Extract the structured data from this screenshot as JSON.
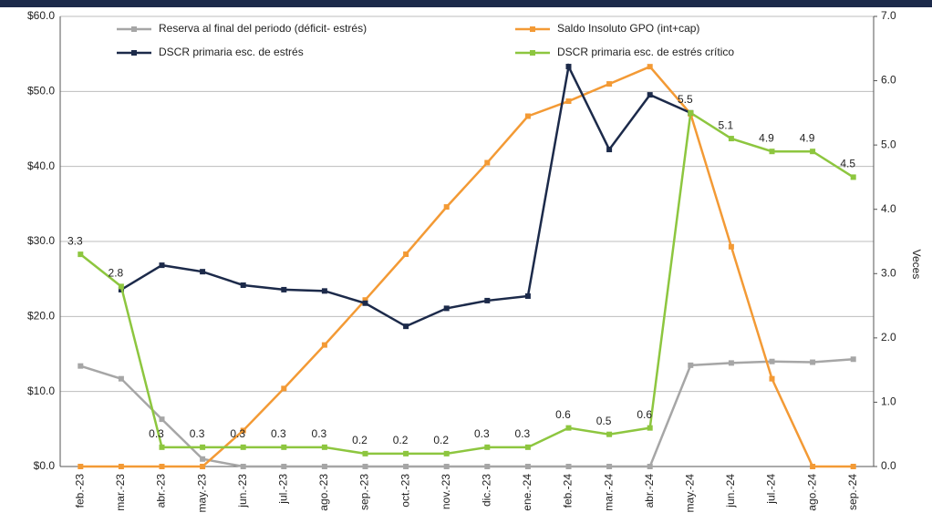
{
  "chart_data": {
    "type": "line",
    "y2label": "Veces",
    "categories": [
      "feb.-23",
      "mar.-23",
      "abr.-23",
      "may.-23",
      "jun.-23",
      "jul.-23",
      "ago.-23",
      "sep.-23",
      "oct.-23",
      "nov.-23",
      "dic.-23",
      "ene.-24",
      "feb.-24",
      "mar.-24",
      "abr.-24",
      "may.-24",
      "jun.-24",
      "jul.-24",
      "ago.-24",
      "sep.-24"
    ],
    "series": [
      {
        "name": "Reserva al final del periodo (déficit- estrés)",
        "color": "#a6a6a6",
        "values": [
          13.4,
          11.7,
          6.3,
          1.0,
          0,
          0,
          0,
          0,
          0,
          0,
          0,
          0,
          0,
          0,
          0,
          13.5,
          13.8,
          14.0,
          13.9,
          14.3
        ]
      },
      {
        "name": "Saldo Insoluto GPO (int+cap)",
        "color": "#f39a35",
        "values": [
          0,
          0,
          0,
          0,
          4.8,
          10.4,
          16.2,
          22.2,
          28.3,
          34.6,
          40.5,
          46.7,
          48.7,
          51.0,
          53.3,
          47.0,
          29.3,
          11.7,
          0,
          0
        ]
      },
      {
        "name": "DSCR primaria esc. de estrés",
        "color": "#1c2a4a",
        "axis": "y2",
        "values": [
          null,
          2.75,
          3.13,
          3.03,
          2.82,
          2.75,
          2.73,
          2.54,
          2.18,
          2.46,
          2.58,
          2.65,
          6.22,
          4.93,
          5.78,
          5.5,
          null,
          null,
          null,
          null
        ]
      },
      {
        "name": "DSCR primaria esc. de estrés crítico",
        "color": "#8dc63f",
        "axis": "y2",
        "data_labels": true,
        "values": [
          3.3,
          2.8,
          0.3,
          0.3,
          0.3,
          0.3,
          0.3,
          0.2,
          0.2,
          0.2,
          0.3,
          0.3,
          0.6,
          0.5,
          0.6,
          5.5,
          5.1,
          4.9,
          4.9,
          4.5
        ]
      }
    ],
    "ylim": [
      0,
      60
    ],
    "yticks": [
      {
        "value": 0,
        "label": "$0.0"
      },
      {
        "value": 10,
        "label": "$10.0"
      },
      {
        "value": 20,
        "label": "$20.0"
      },
      {
        "value": 30,
        "label": "$30.0"
      },
      {
        "value": 40,
        "label": "$40.0"
      },
      {
        "value": 50,
        "label": "$50.0"
      },
      {
        "value": 60,
        "label": "$60.0"
      }
    ],
    "y2lim": [
      0,
      7
    ],
    "y2ticks": [
      {
        "value": 0,
        "label": "0.0"
      },
      {
        "value": 1,
        "label": "1.0"
      },
      {
        "value": 2,
        "label": "2.0"
      },
      {
        "value": 3,
        "label": "3.0"
      },
      {
        "value": 4,
        "label": "4.0"
      },
      {
        "value": 5,
        "label": "5.0"
      },
      {
        "value": 6,
        "label": "6.0"
      },
      {
        "value": 7,
        "label": "7.0"
      }
    ],
    "grid": true,
    "legend": "top"
  }
}
